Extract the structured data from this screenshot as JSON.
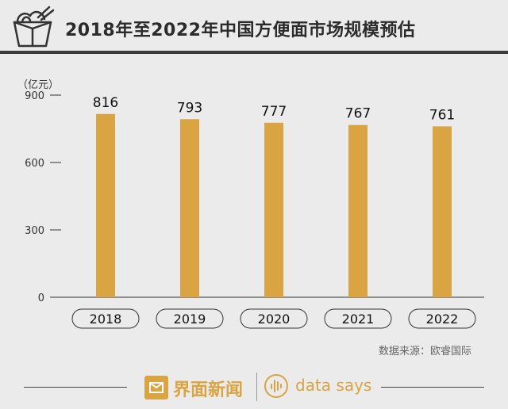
{
  "header": {
    "title": "2018年至2022年中国方便面市场规模预估"
  },
  "chart_data": {
    "type": "bar",
    "unit_label": "（亿元）",
    "categories": [
      "2018",
      "2019",
      "2020",
      "2021",
      "2022"
    ],
    "values": [
      816,
      793,
      777,
      767,
      761
    ],
    "ylim": [
      0,
      900
    ],
    "yticks": [
      "0",
      "300",
      "600",
      "900"
    ],
    "grid": false,
    "bar_color": "#d9a441"
  },
  "source": "数据来源：欧睿国际",
  "footer": {
    "brand_cn": "界面新闻",
    "brand_en": "data says"
  },
  "colors": {
    "background": "#ebebeb",
    "accent": "#d9a441",
    "dark": "#3b3b3b"
  },
  "icons": {
    "header": "noodle-box-icon",
    "brand": "jiemian-logo-icon",
    "datasays": "waveform-icon"
  }
}
